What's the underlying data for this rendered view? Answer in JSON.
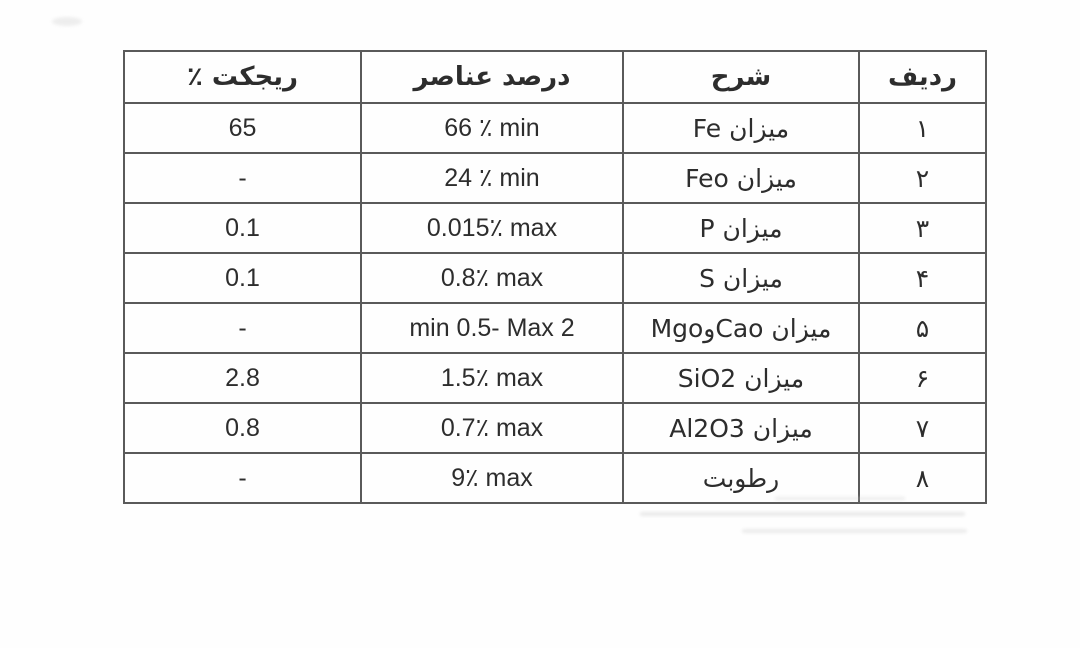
{
  "table": {
    "headers": {
      "row": "ردیف",
      "description": "شرح",
      "percent": "درصد عناصر",
      "reject": "ریجکت ٪"
    },
    "rows": [
      {
        "row": "۱",
        "description": "میزان Fe",
        "percent": "66 ٪ min",
        "reject": "65"
      },
      {
        "row": "۲",
        "description": "میزان Feo",
        "percent": "24 ٪ min",
        "reject": "-"
      },
      {
        "row": "۳",
        "description": "میزان P",
        "percent": "0.015٪ max",
        "reject": "0.1"
      },
      {
        "row": "۴",
        "description": "میزان S",
        "percent": "0.8٪ max",
        "reject": "0.1"
      },
      {
        "row": "۵",
        "description": "میزان CaoوMgo",
        "percent": "min 0.5- Max 2",
        "reject": "-"
      },
      {
        "row": "۶",
        "description": "میزان SiO2",
        "percent": "1.5٪ max",
        "reject": "2.8"
      },
      {
        "row": "۷",
        "description": "میزان Al2O3",
        "percent": "0.7٪ max",
        "reject": "0.8"
      },
      {
        "row": "۸",
        "description": "رطوبت",
        "percent": "9٪ max",
        "reject": "-"
      }
    ]
  }
}
